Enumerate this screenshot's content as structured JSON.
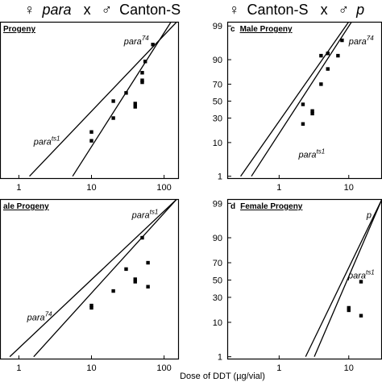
{
  "headers": {
    "left": {
      "female_symbol": "♀",
      "female_strain": "para",
      "cross": "x",
      "male_symbol": "♂",
      "male_strain": "Canton-S"
    },
    "right": {
      "female_symbol": "♀",
      "female_strain": "Canton-S",
      "cross": "x",
      "male_symbol": "♂",
      "male_strain": "p"
    }
  },
  "x_axis_label": "Dose of DDT (µg/vial)",
  "chart_data": [
    {
      "panel": "top-left",
      "type": "scatter",
      "panel_letter": "",
      "title": "Progeny",
      "x_scale": "log",
      "y_scale": "probit",
      "xlim": [
        0.55,
        160
      ],
      "ylim": [
        0.8,
        99.3
      ],
      "x_ticks": [
        1,
        10,
        100
      ],
      "y_ticks": [],
      "series": [
        {
          "name": "para74",
          "points": [
            [
              20,
              50
            ],
            [
              30,
              60
            ],
            [
              40,
              47
            ],
            [
              40,
              43
            ],
            [
              50,
              74
            ],
            [
              50,
              81
            ],
            [
              55,
              89
            ],
            [
              70,
              96
            ]
          ],
          "line": [
            [
              5.5,
              1
            ],
            [
              125,
              99.3
            ]
          ],
          "label": {
            "base": "para",
            "sup": "74",
            "anchor": [
              28,
              96
            ]
          }
        },
        {
          "name": "parats1",
          "points": [
            [
              10,
              17
            ],
            [
              10,
              11
            ],
            [
              20,
              30
            ],
            [
              50,
              72
            ]
          ],
          "line": [
            [
              1.4,
              1
            ],
            [
              150,
              99.3
            ]
          ],
          "label": {
            "base": "para",
            "sup": "ts1",
            "anchor": [
              1.6,
              9
            ]
          }
        }
      ]
    },
    {
      "panel": "top-right",
      "type": "scatter",
      "panel_letter": "c",
      "title": "Male Progeny",
      "x_scale": "log",
      "y_scale": "probit",
      "xlim": [
        0.18,
        30
      ],
      "ylim": [
        0.8,
        99.3
      ],
      "x_ticks": [
        1,
        10
      ],
      "y_ticks": [
        1,
        10,
        30,
        50,
        70,
        90,
        99
      ],
      "series": [
        {
          "name": "para74",
          "points": [
            [
              2.2,
              46
            ],
            [
              3,
              38
            ],
            [
              3,
              35
            ],
            [
              4,
              70
            ],
            [
              4,
              92
            ],
            [
              5,
              93
            ],
            [
              5,
              84
            ],
            [
              7,
              92
            ],
            [
              8,
              97
            ]
          ],
          "line": [
            [
              0.28,
              1
            ],
            [
              10,
              99.3
            ]
          ],
          "label": {
            "base": "para",
            "sup": "74",
            "anchor": [
              10,
              96
            ]
          }
        },
        {
          "name": "parats1",
          "points": [
            [
              2.2,
              24
            ]
          ],
          "line": [
            [
              0.4,
              1
            ],
            [
              11,
              99.3
            ]
          ],
          "label": {
            "base": "para",
            "sup": "ts1",
            "anchor": [
              1.9,
              4
            ]
          }
        }
      ]
    },
    {
      "panel": "bottom-left",
      "type": "scatter",
      "panel_letter": "",
      "title": "ale Progeny",
      "x_scale": "log",
      "y_scale": "probit",
      "xlim": [
        0.55,
        160
      ],
      "ylim": [
        0.8,
        99.3
      ],
      "x_ticks": [
        1,
        10,
        100
      ],
      "y_ticks": [],
      "series": [
        {
          "name": "parats1",
          "points": [
            [
              10,
              22
            ],
            [
              10,
              20
            ],
            [
              20,
              37
            ],
            [
              30,
              63
            ],
            [
              40,
              51
            ],
            [
              50,
              90
            ],
            [
              60,
              70
            ],
            [
              60,
              42
            ]
          ],
          "line": [
            [
              1.6,
              1
            ],
            [
              150,
              99.3
            ]
          ],
          "label": {
            "base": "para",
            "sup": "ts1",
            "anchor": [
              36,
              97
            ]
          }
        },
        {
          "name": "para74",
          "points": [
            [
              40,
              48
            ]
          ],
          "line": [
            [
              0.75,
              1
            ],
            [
              150,
              99.3
            ]
          ],
          "label": {
            "base": "para",
            "sup": "74",
            "anchor": [
              1.3,
              11
            ]
          }
        }
      ]
    },
    {
      "panel": "bottom-right",
      "type": "scatter",
      "panel_letter": "d",
      "title": "Female Progeny",
      "x_scale": "log",
      "y_scale": "probit",
      "xlim": [
        0.18,
        30
      ],
      "ylim": [
        0.8,
        99.3
      ],
      "x_ticks": [
        1,
        10
      ],
      "y_ticks": [
        1,
        10,
        30,
        50,
        70,
        90,
        99
      ],
      "series": [
        {
          "name": "parats1",
          "points": [
            [
              10,
              20
            ],
            [
              10,
              18
            ],
            [
              15,
              48
            ],
            [
              15,
              14
            ]
          ],
          "line": [
            [
              2.4,
              1
            ],
            [
              30,
              99.3
            ]
          ],
          "label": {
            "base": "para",
            "sup": "ts1",
            "anchor": [
              9.8,
              52
            ]
          }
        },
        {
          "name": "para74",
          "points": [],
          "line": [
            [
              3.2,
              1
            ],
            [
              30,
              99.3
            ]
          ],
          "label": {
            "base": "p",
            "sup": "",
            "anchor": [
              18,
              97
            ]
          }
        }
      ]
    }
  ]
}
